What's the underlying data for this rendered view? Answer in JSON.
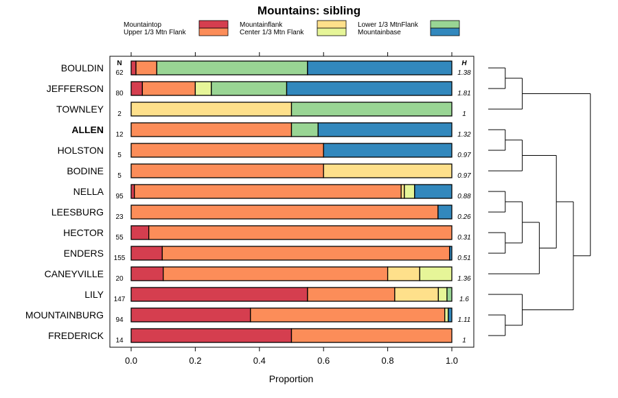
{
  "chart_data": {
    "type": "stacked-bar-horizontal",
    "title": "Mountains: sibling",
    "xlabel": "Proportion",
    "xlim": [
      0,
      1
    ],
    "xticks": [
      "0.0",
      "0.2",
      "0.4",
      "0.6",
      "0.8",
      "1.0"
    ],
    "n_header": "N",
    "h_header": "H",
    "legend": [
      {
        "name": "Mountaintop",
        "color": "#d53e4f"
      },
      {
        "name": "Upper 1/3 Mtn Flank",
        "color": "#fc8d59"
      },
      {
        "name": "Mountainflank",
        "color": "#fee08b"
      },
      {
        "name": "Center 1/3 Mtn Flank",
        "color": "#e6f598"
      },
      {
        "name": "Lower 1/3 MtnFlank",
        "color": "#99d594"
      },
      {
        "name": "Mountainbase",
        "color": "#3288bd"
      }
    ],
    "rows": [
      {
        "label": "BOULDIN",
        "n": "62",
        "h": "1.38",
        "bold": false,
        "values": [
          0.015,
          0.065,
          0,
          0,
          0.47,
          0.45
        ]
      },
      {
        "label": "JEFFERSON",
        "n": "80",
        "h": "1.81",
        "bold": false,
        "values": [
          0.035,
          0.165,
          0,
          0.05,
          0.235,
          0.515
        ]
      },
      {
        "label": "TOWNLEY",
        "n": "2",
        "h": "1",
        "bold": false,
        "values": [
          0,
          0,
          0.5,
          0,
          0.5,
          0
        ]
      },
      {
        "label": "ALLEN",
        "n": "12",
        "h": "1.32",
        "bold": true,
        "values": [
          0,
          0.5,
          0,
          0,
          0.083,
          0.417
        ]
      },
      {
        "label": "HOLSTON",
        "n": "5",
        "h": "0.97",
        "bold": false,
        "values": [
          0,
          0.6,
          0,
          0,
          0,
          0.4
        ]
      },
      {
        "label": "BODINE",
        "n": "5",
        "h": "0.97",
        "bold": false,
        "values": [
          0,
          0.6,
          0.4,
          0,
          0,
          0
        ]
      },
      {
        "label": "NELLA",
        "n": "95",
        "h": "0.88",
        "bold": false,
        "values": [
          0.01,
          0.832,
          0.01,
          0.032,
          0,
          0.116
        ]
      },
      {
        "label": "LEESBURG",
        "n": "23",
        "h": "0.26",
        "bold": false,
        "values": [
          0,
          0.957,
          0,
          0,
          0,
          0.043
        ]
      },
      {
        "label": "HECTOR",
        "n": "55",
        "h": "0.31",
        "bold": false,
        "values": [
          0.055,
          0.945,
          0,
          0,
          0,
          0
        ]
      },
      {
        "label": "ENDERS",
        "n": "155",
        "h": "0.51",
        "bold": false,
        "values": [
          0.097,
          0.896,
          0,
          0,
          0,
          0.007
        ]
      },
      {
        "label": "CANEYVILLE",
        "n": "20",
        "h": "1.36",
        "bold": false,
        "values": [
          0.1,
          0.7,
          0.1,
          0.1,
          0,
          0
        ]
      },
      {
        "label": "LILY",
        "n": "147",
        "h": "1.6",
        "bold": false,
        "values": [
          0.55,
          0.272,
          0.136,
          0.027,
          0.015,
          0
        ]
      },
      {
        "label": "MOUNTAINBURG",
        "n": "94",
        "h": "1.11",
        "bold": false,
        "values": [
          0.372,
          0.606,
          0,
          0.011,
          0,
          0.011
        ]
      },
      {
        "label": "FREDERICK",
        "n": "14",
        "h": "1",
        "bold": false,
        "values": [
          0.5,
          0.5,
          0,
          0,
          0,
          0
        ]
      }
    ],
    "dendrogram": {
      "children": [
        {
          "children": [
            {
              "children": [
                {
                  "row": 0
                },
                {
                  "row": 1
                }
              ]
            },
            {
              "row": 2
            }
          ]
        },
        {
          "children": [
            {
              "children": [
                {
                  "children": [
                    {
                      "children": [
                        {
                          "row": 3
                        },
                        {
                          "row": 4
                        }
                      ]
                    },
                    {
                      "row": 5
                    }
                  ]
                },
                {
                  "children": [
                    {
                      "children": [
                        {
                          "children": [
                            {
                              "row": 6
                            },
                            {
                              "row": 7
                            }
                          ]
                        },
                        {
                          "children": [
                            {
                              "row": 8
                            },
                            {
                              "row": 9
                            }
                          ]
                        }
                      ]
                    },
                    {
                      "row": 10
                    }
                  ]
                }
              ]
            },
            {
              "children": [
                {
                  "row": 11
                },
                {
                  "children": [
                    {
                      "row": 12
                    },
                    {
                      "row": 13
                    }
                  ]
                }
              ]
            }
          ]
        }
      ]
    }
  }
}
